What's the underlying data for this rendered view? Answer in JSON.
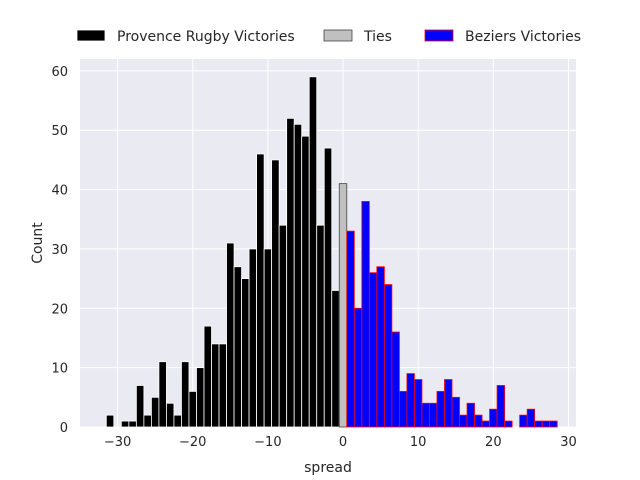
{
  "chart_data": {
    "type": "bar",
    "xlabel": "spread",
    "ylabel": "Count",
    "xlim": [
      -35,
      31
    ],
    "ylim": [
      0,
      62
    ],
    "xticks": [
      -30,
      -20,
      -10,
      0,
      10,
      20,
      30
    ],
    "yticks": [
      0,
      10,
      20,
      30,
      40,
      50,
      60
    ],
    "grid": true,
    "legend_position": "top",
    "series": [
      {
        "name": "Provence Rugby Victories",
        "fill": "#000000",
        "edge": "#ffffff",
        "x": [
          -31,
          -29,
          -28,
          -27,
          -26,
          -25,
          -24,
          -23,
          -22,
          -21,
          -20,
          -19,
          -18,
          -17,
          -16,
          -15,
          -14,
          -13,
          -12,
          -11,
          -10,
          -9,
          -8,
          -7,
          -6,
          -5,
          -4,
          -3,
          -2,
          -1
        ],
        "values": [
          2,
          1,
          1,
          7,
          2,
          5,
          11,
          4,
          2,
          11,
          6,
          10,
          17,
          14,
          14,
          31,
          27,
          25,
          30,
          46,
          30,
          45,
          34,
          52,
          51,
          49,
          59,
          34,
          47,
          23
        ]
      },
      {
        "name": "Ties",
        "fill": "#c0c0c0",
        "edge": "#444444",
        "x": [
          0
        ],
        "values": [
          41
        ]
      },
      {
        "name": "Beziers Victories",
        "fill": "#0000ff",
        "edge": "#ff0000",
        "x": [
          1,
          2,
          3,
          4,
          5,
          6,
          7,
          8,
          9,
          10,
          11,
          12,
          13,
          14,
          15,
          16,
          17,
          18,
          19,
          20,
          21,
          22,
          24,
          25,
          26,
          27,
          28
        ],
        "values": [
          33,
          20,
          38,
          26,
          27,
          24,
          16,
          6,
          9,
          8,
          4,
          4,
          6,
          8,
          5,
          2,
          4,
          2,
          1,
          3,
          7,
          1,
          2,
          3,
          1,
          1,
          1
        ]
      }
    ]
  }
}
